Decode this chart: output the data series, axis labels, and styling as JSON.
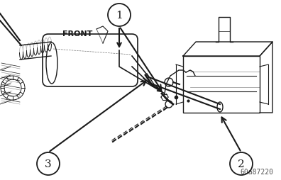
{
  "bg_color": "#ffffff",
  "fig_width": 3.96,
  "fig_height": 2.55,
  "dpi": 100,
  "watermark": "60a87220",
  "front_label": "FRONT",
  "lc": "#1a1a1a",
  "gray": "#888888",
  "circle_1": [
    0.425,
    0.93
  ],
  "circle_2": [
    0.865,
    0.1
  ],
  "circle_3": [
    0.175,
    0.1
  ],
  "circle_r": 0.042,
  "watermark_fontsize": 7,
  "watermark_color": "#555555"
}
